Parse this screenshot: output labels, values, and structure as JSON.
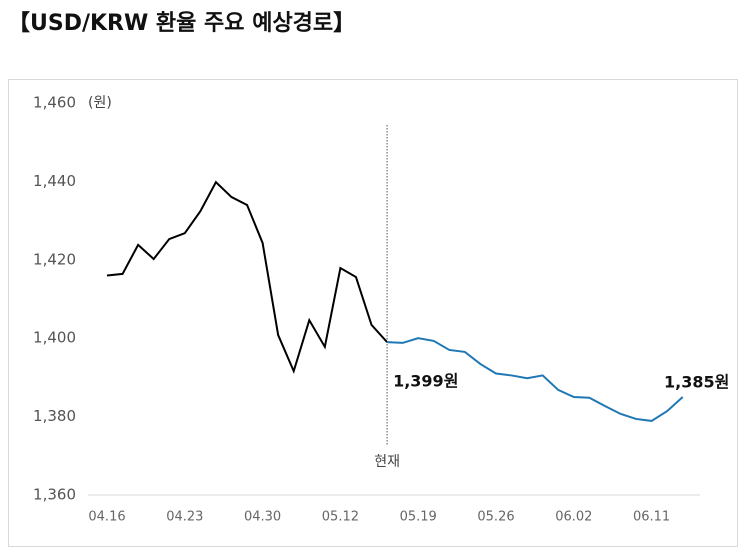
{
  "chart_data": {
    "type": "line",
    "title": "【USD/KRW 환율 주요 예상경로】",
    "y_unit": "(원)",
    "categories": [
      "04.16",
      null,
      null,
      null,
      null,
      "04.23",
      null,
      null,
      null,
      null,
      "04.30",
      null,
      null,
      null,
      null,
      "05.12",
      null,
      null,
      null,
      null,
      "05.19",
      null,
      null,
      null,
      null,
      "05.26",
      null,
      null,
      null,
      null,
      "06.02",
      null,
      null,
      null,
      null,
      "06.11",
      null,
      null
    ],
    "series": [
      {
        "color": "#000000",
        "values": [
          1416,
          1416.4,
          1423.8,
          1420.2,
          1425.3,
          1426.8,
          1432.4,
          1439.8,
          1436,
          1434,
          1424.3,
          1400.8,
          1391.6,
          1404.6,
          1397.8,
          1417.9,
          1415.6,
          1403.4,
          1399,
          null,
          null,
          null,
          null,
          null,
          null,
          null,
          null,
          null,
          null,
          null,
          null,
          null,
          null,
          null,
          null,
          null,
          null,
          null
        ]
      },
      {
        "color": "#1f77b4",
        "values": [
          null,
          null,
          null,
          null,
          null,
          null,
          null,
          null,
          null,
          null,
          null,
          null,
          null,
          null,
          null,
          null,
          null,
          null,
          1399,
          1398.8,
          1400,
          1399.3,
          1397,
          1396.5,
          1393.4,
          1391,
          1390.5,
          1389.8,
          1390.5,
          1386.8,
          1385,
          1384.8,
          1382.7,
          1380.7,
          1379.4,
          1378.9,
          1381.4,
          1385
        ],
        "value_labels": [
          null,
          null,
          null,
          null,
          null,
          null,
          null,
          null,
          null,
          null,
          null,
          null,
          null,
          null,
          null,
          null,
          null,
          null,
          "1,399원",
          null,
          null,
          null,
          null,
          null,
          null,
          null,
          null,
          null,
          null,
          null,
          null,
          null,
          null,
          null,
          null,
          null,
          null,
          "1,385원"
        ]
      }
    ],
    "annotation": {
      "text": "현재",
      "index": 18
    },
    "ylim": [
      1360,
      1460
    ],
    "yticks": [
      {
        "value": 1360,
        "label": "1,360"
      },
      {
        "value": 1380,
        "label": "1,380"
      },
      {
        "value": 1400,
        "label": "1,400"
      },
      {
        "value": 1420,
        "label": "1,420"
      },
      {
        "value": 1440,
        "label": "1,440"
      },
      {
        "value": 1460,
        "label": "1,460"
      }
    ]
  }
}
